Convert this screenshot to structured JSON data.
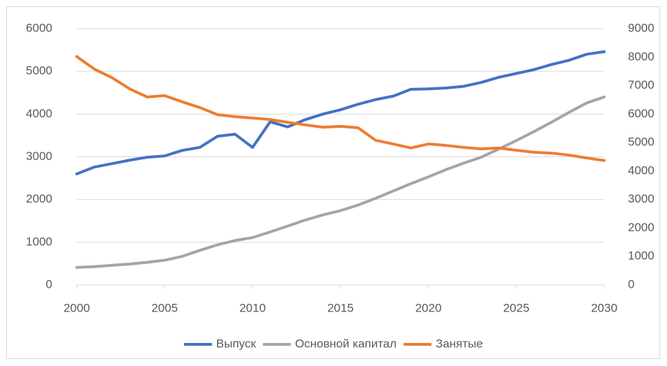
{
  "chart_data": {
    "type": "line",
    "x": [
      2000,
      2001,
      2002,
      2003,
      2004,
      2005,
      2006,
      2007,
      2008,
      2009,
      2010,
      2011,
      2012,
      2013,
      2014,
      2015,
      2016,
      2017,
      2018,
      2019,
      2020,
      2021,
      2022,
      2023,
      2024,
      2025,
      2026,
      2027,
      2028,
      2029,
      2030
    ],
    "xlim": [
      2000,
      2030
    ],
    "xticks": [
      2000,
      2005,
      2010,
      2015,
      2020,
      2025,
      2030
    ],
    "ylim": [
      0,
      6000
    ],
    "yticks": [
      0,
      1000,
      2000,
      3000,
      4000,
      5000,
      6000
    ],
    "y2lim": [
      0,
      9000
    ],
    "y2ticks": [
      0,
      1000,
      2000,
      3000,
      4000,
      5000,
      6000,
      7000,
      8000,
      9000
    ],
    "grid": true,
    "legend": "bottom",
    "series": [
      {
        "name": "Выпуск",
        "color": "#4472c4",
        "values": [
          2600,
          2760,
          2840,
          2920,
          2990,
          3020,
          3150,
          3220,
          3480,
          3530,
          3220,
          3820,
          3700,
          3870,
          4000,
          4100,
          4230,
          4340,
          4420,
          4580,
          4590,
          4610,
          4650,
          4740,
          4860,
          4950,
          5040,
          5160,
          5260,
          5400,
          5460
        ]
      },
      {
        "name": "Основной капитал",
        "color": "#a5a5a5",
        "values": [
          410,
          430,
          460,
          490,
          530,
          580,
          670,
          810,
          940,
          1040,
          1110,
          1240,
          1380,
          1520,
          1640,
          1740,
          1870,
          2030,
          2200,
          2370,
          2530,
          2700,
          2850,
          2990,
          3180,
          3380,
          3590,
          3810,
          4040,
          4260,
          4400
        ]
      },
      {
        "name": "Занятые",
        "color": "#ed7d31",
        "axis": "y2",
        "values": [
          8020,
          7580,
          7280,
          6890,
          6600,
          6650,
          6430,
          6230,
          5980,
          5910,
          5860,
          5810,
          5710,
          5620,
          5540,
          5570,
          5520,
          5080,
          4950,
          4810,
          4950,
          4900,
          4830,
          4780,
          4810,
          4730,
          4660,
          4630,
          4560,
          4460,
          4370
        ]
      }
    ]
  }
}
